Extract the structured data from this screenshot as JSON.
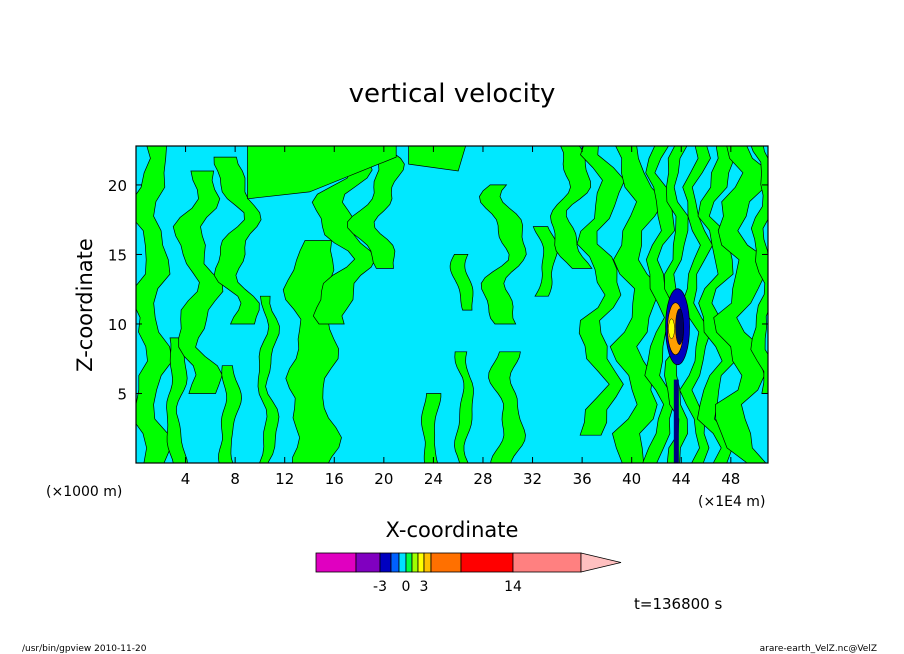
{
  "chart_data": {
    "type": "heatmap",
    "title": "vertical velocity",
    "xlabel": "X-coordinate",
    "ylabel": "Z-coordinate",
    "x_unit_left": "(×1000 m)",
    "x_unit_right": "(×1E4 m)",
    "x_ticks": [
      4,
      8,
      12,
      16,
      20,
      24,
      28,
      32,
      36,
      40,
      44,
      48
    ],
    "y_ticks": [
      5,
      10,
      15,
      20
    ],
    "xlim": [
      0,
      51
    ],
    "ylim": [
      0,
      22.8
    ],
    "colorbar": {
      "tick_labels": [
        {
          "text": "-3",
          "value": -3
        },
        {
          "text": "0",
          "value": 0
        },
        {
          "text": "3",
          "value": 3
        },
        {
          "text": "14",
          "value": 14
        }
      ],
      "colors": [
        "#e000c0",
        "#8000c0",
        "#0000c0",
        "#0060ff",
        "#00e0ff",
        "#00ff40",
        "#a0ff00",
        "#ffff00",
        "#ffc000",
        "#ff7000",
        "#ff0000",
        "#ff8080",
        "#ffc0c0"
      ]
    },
    "regions": {
      "negative_color": "#00e8ff",
      "positive_color": "#00ff00"
    },
    "annotation_time": "t=136800 s"
  },
  "footer": {
    "left": "/usr/bin/gpview   2010-11-20",
    "right": "arare-earth_VelZ.nc@VelZ"
  }
}
